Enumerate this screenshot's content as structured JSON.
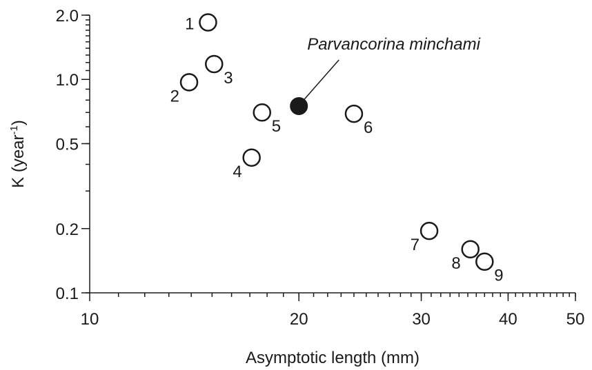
{
  "chart_data": {
    "type": "scatter",
    "title": "",
    "xlabel": "Asymptotic length (mm)",
    "ylabel_main": "K (year",
    "ylabel_sup": "-1",
    "ylabel_end": ")",
    "x_scale": "log",
    "y_scale": "log",
    "xlim": [
      10,
      50
    ],
    "ylim": [
      0.1,
      2.0
    ],
    "x_ticks": [
      {
        "value": 10,
        "label": "10"
      },
      {
        "value": 20,
        "label": "20"
      },
      {
        "value": 30,
        "label": "30"
      },
      {
        "value": 40,
        "label": "40"
      },
      {
        "value": 50,
        "label": "50"
      }
    ],
    "y_ticks": [
      {
        "value": 0.1,
        "label": "0.1"
      },
      {
        "value": 0.2,
        "label": "0.2"
      },
      {
        "value": 0.5,
        "label": "0.5"
      },
      {
        "value": 1.0,
        "label": "1.0"
      },
      {
        "value": 2.0,
        "label": "2.0"
      }
    ],
    "grid": false,
    "points": [
      {
        "label": "1",
        "x": 14.8,
        "y": 1.85,
        "label_pos": "left"
      },
      {
        "label": "2",
        "x": 13.9,
        "y": 0.97,
        "label_pos": "bottom-left"
      },
      {
        "label": "3",
        "x": 15.1,
        "y": 1.18,
        "label_pos": "bottom-right"
      },
      {
        "label": "4",
        "x": 17.1,
        "y": 0.43,
        "label_pos": "bottom-left"
      },
      {
        "label": "5",
        "x": 17.7,
        "y": 0.7,
        "label_pos": "bottom-right"
      },
      {
        "label": "6",
        "x": 24.0,
        "y": 0.69,
        "label_pos": "bottom-right"
      },
      {
        "label": "7",
        "x": 30.8,
        "y": 0.195,
        "label_pos": "bottom-left"
      },
      {
        "label": "8",
        "x": 35.3,
        "y": 0.16,
        "label_pos": "bottom-left"
      },
      {
        "label": "9",
        "x": 37.0,
        "y": 0.14,
        "label_pos": "bottom-right"
      }
    ],
    "highlight": {
      "label": "Parvancorina minchami",
      "x": 20.0,
      "y": 0.75,
      "filled": true
    }
  }
}
